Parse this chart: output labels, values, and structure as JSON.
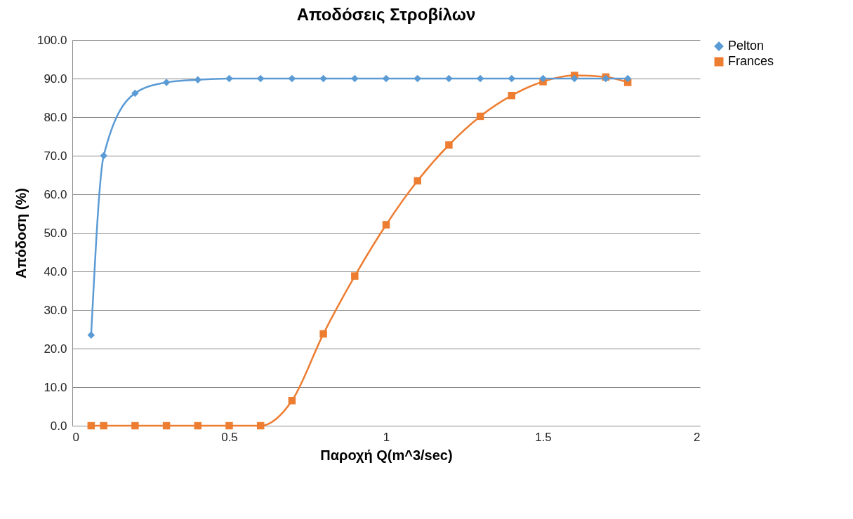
{
  "chart_data": {
    "type": "line",
    "title": "Αποδόσεις Στροβίλων",
    "xlabel": "Παροχή Q(m^3/sec)",
    "ylabel": "Απόδοση (%)",
    "xlim": [
      0,
      2
    ],
    "xticks": [
      0,
      0.5,
      1,
      1.5,
      2
    ],
    "ylim": [
      0,
      100
    ],
    "yticks": [
      {
        "value": 0,
        "label": "0.0"
      },
      {
        "value": 10,
        "label": "10.0"
      },
      {
        "value": 20,
        "label": "20.0"
      },
      {
        "value": 30,
        "label": "30.0"
      },
      {
        "value": 40,
        "label": "40.0"
      },
      {
        "value": 50,
        "label": "50.0"
      },
      {
        "value": 60,
        "label": "60.0"
      },
      {
        "value": 70,
        "label": "70.0"
      },
      {
        "value": 80,
        "label": "80.0"
      },
      {
        "value": 90,
        "label": "90.0"
      },
      {
        "value": 100,
        "label": "100.0"
      }
    ],
    "grid": "y",
    "legend": "right",
    "line_style": "solid",
    "x": [
      0.06,
      0.1,
      0.2,
      0.3,
      0.4,
      0.5,
      0.6,
      0.7,
      0.8,
      0.9,
      1.0,
      1.1,
      1.2,
      1.3,
      1.4,
      1.5,
      1.6,
      1.7,
      1.77
    ],
    "series": [
      {
        "name": "Pelton",
        "color": "#5b9bd5",
        "marker": "diamond",
        "values": [
          23.5,
          70,
          86.2,
          89,
          89.7,
          90,
          90,
          90,
          90,
          90,
          90,
          90,
          90,
          90,
          90,
          90,
          90,
          90,
          90
        ]
      },
      {
        "name": "Frances",
        "color": "#ed7d31",
        "marker": "square",
        "values": [
          0,
          0,
          0,
          0,
          0,
          0,
          0,
          6.5,
          23.8,
          38.8,
          52.1,
          63.5,
          72.8,
          80.2,
          85.6,
          89.2,
          90.8,
          90.4,
          89
        ]
      }
    ]
  }
}
